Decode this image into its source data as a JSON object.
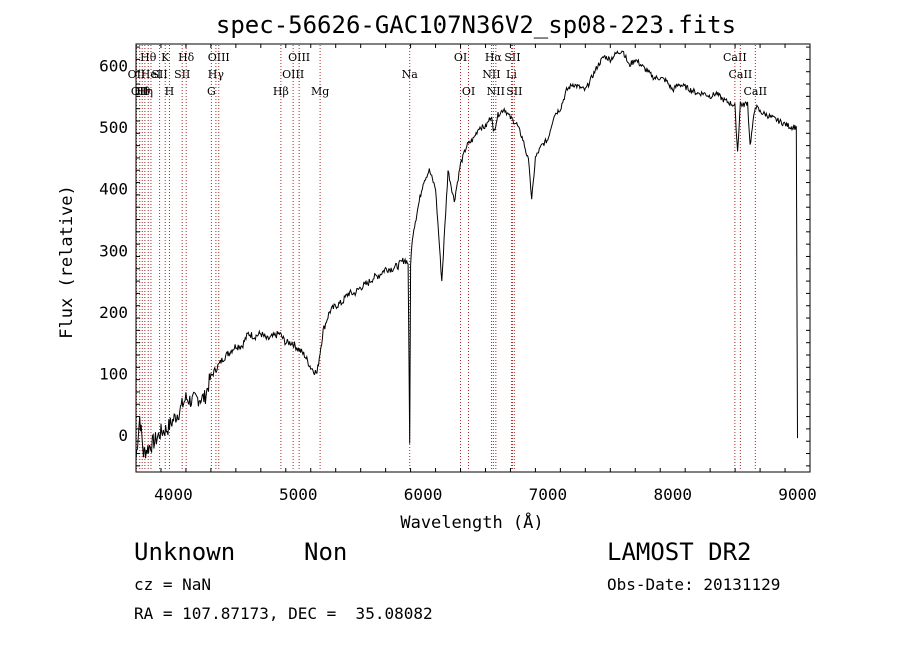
{
  "chart_data": {
    "type": "line",
    "title": "spec-56626-GAC107N36V2_sp08-223.fits",
    "xlabel": "Wavelength (Å)",
    "ylabel": "Flux (relative)",
    "xlim": [
      3700,
      9100
    ],
    "ylim": [
      -60,
      635
    ],
    "xticks": [
      4000,
      5000,
      6000,
      7000,
      8000,
      9000
    ],
    "yticks": [
      0,
      100,
      200,
      300,
      400,
      500,
      600
    ],
    "grid": false,
    "line_color": "#000000",
    "marker_color": "#a52a2a",
    "series": [
      {
        "x": [
          3700,
          3730,
          3760,
          3800,
          3850,
          3900,
          3950,
          4000,
          4050,
          4100,
          4150,
          4200,
          4250,
          4300,
          4350,
          4400,
          4450,
          4500,
          4550,
          4600,
          4650,
          4700,
          4750,
          4800,
          4850,
          4900,
          4950,
          5000,
          5050,
          5100,
          5150,
          5200,
          5250,
          5300,
          5350,
          5400,
          5450,
          5500,
          5550,
          5600,
          5650,
          5700,
          5750,
          5800,
          5850,
          5880,
          5893,
          5900,
          5920,
          5950,
          6000,
          6050,
          6100,
          6150,
          6200,
          6250,
          6300,
          6350,
          6400,
          6450,
          6500,
          6550,
          6563,
          6600,
          6650,
          6700,
          6750,
          6800,
          6850,
          6870,
          6900,
          6950,
          7000,
          7050,
          7100,
          7150,
          7200,
          7250,
          7300,
          7350,
          7400,
          7450,
          7500,
          7550,
          7600,
          7650,
          7700,
          7750,
          7800,
          7850,
          7900,
          7950,
          8000,
          8050,
          8100,
          8150,
          8200,
          8250,
          8300,
          8350,
          8400,
          8450,
          8498,
          8520,
          8542,
          8560,
          8600,
          8620,
          8662,
          8700,
          8750,
          8800,
          8850,
          8900,
          8950,
          8990,
          9000
        ],
        "y": [
          -40,
          30,
          -30,
          -20,
          -10,
          5,
          10,
          25,
          40,
          60,
          55,
          60,
          60,
          95,
          110,
          125,
          135,
          145,
          145,
          165,
          160,
          165,
          155,
          160,
          165,
          150,
          150,
          140,
          130,
          110,
          100,
          170,
          200,
          210,
          215,
          230,
          230,
          240,
          245,
          255,
          260,
          270,
          270,
          275,
          285,
          280,
          -15,
          280,
          330,
          360,
          410,
          430,
          400,
          250,
          430,
          380,
          440,
          470,
          480,
          500,
          500,
          520,
          490,
          520,
          530,
          515,
          505,
          480,
          440,
          380,
          450,
          470,
          480,
          520,
          530,
          560,
          570,
          565,
          560,
          580,
          600,
          615,
          610,
          620,
          625,
          600,
          610,
          600,
          590,
          580,
          580,
          575,
          560,
          570,
          565,
          560,
          555,
          555,
          550,
          555,
          545,
          540,
          535,
          460,
          540,
          535,
          540,
          470,
          535,
          525,
          520,
          515,
          510,
          505,
          500,
          500,
          -5
        ]
      }
    ],
    "line_markers": [
      {
        "x": 3704,
        "labels": [
          "OII"
        ],
        "row": 2
      },
      {
        "x": 3730,
        "labels": [
          "OII"
        ],
        "row": 4
      },
      {
        "x": 3750,
        "labels": [
          "Hθ"
        ],
        "row": 4
      },
      {
        "x": 3771,
        "labels": [
          "Hη"
        ],
        "row": 4
      },
      {
        "x": 3798,
        "labels": [
          "Hθ"
        ],
        "row": 1
      },
      {
        "x": 3820,
        "labels": [
          "HeI"
        ],
        "row": 2
      },
      {
        "x": 3889,
        "labels": [
          "SII"
        ],
        "row": 2
      },
      {
        "x": 3934,
        "labels": [
          "K"
        ],
        "row": 1
      },
      {
        "x": 3968,
        "labels": [
          "H"
        ],
        "row": 4
      },
      {
        "x": 4102,
        "labels": [
          "Hδ"
        ],
        "row": 1
      },
      {
        "x": 4070,
        "labels": [
          "SII"
        ],
        "row": 2
      },
      {
        "x": 4304,
        "labels": [
          "G"
        ],
        "row": 4
      },
      {
        "x": 4340,
        "labels": [
          "Hγ"
        ],
        "row": 2
      },
      {
        "x": 4363,
        "labels": [
          "OIII"
        ],
        "row": 1
      },
      {
        "x": 4861,
        "labels": [
          "Hβ"
        ],
        "row": 4
      },
      {
        "x": 4959,
        "labels": [
          "OIII"
        ],
        "row": 2
      },
      {
        "x": 5007,
        "labels": [
          "OIII"
        ],
        "row": 1
      },
      {
        "x": 5175,
        "labels": [
          "Mg"
        ],
        "row": 4
      },
      {
        "x": 5893,
        "labels": [
          "Na"
        ],
        "row": 2
      },
      {
        "x": 6300,
        "labels": [
          "OI"
        ],
        "row": 1
      },
      {
        "x": 6364,
        "labels": [
          "OI"
        ],
        "row": 4
      },
      {
        "x": 6548,
        "labels": [
          "NII"
        ],
        "row": 2
      },
      {
        "x": 6563,
        "labels": [
          "Hα"
        ],
        "row": 1
      },
      {
        "x": 6583,
        "labels": [
          "NII"
        ],
        "row": 4
      },
      {
        "x": 6708,
        "labels": [
          "Li"
        ],
        "row": 2
      },
      {
        "x": 6716,
        "labels": [
          "SII"
        ],
        "row": 1
      },
      {
        "x": 6731,
        "labels": [
          "SII"
        ],
        "row": 4
      },
      {
        "x": 8498,
        "labels": [
          "CaII"
        ],
        "row": 1
      },
      {
        "x": 8542,
        "labels": [
          "CaII"
        ],
        "row": 2
      },
      {
        "x": 8662,
        "labels": [
          "CaII"
        ],
        "row": 4
      }
    ]
  },
  "info": {
    "class_label": "Unknown",
    "subclass_label": "Non",
    "survey_label": "LAMOST DR2",
    "cz_text": "cz = NaN",
    "obs_date_text": "Obs-Date: 20131129",
    "radec_text": "RA = 107.87173, DEC =  35.08082"
  }
}
